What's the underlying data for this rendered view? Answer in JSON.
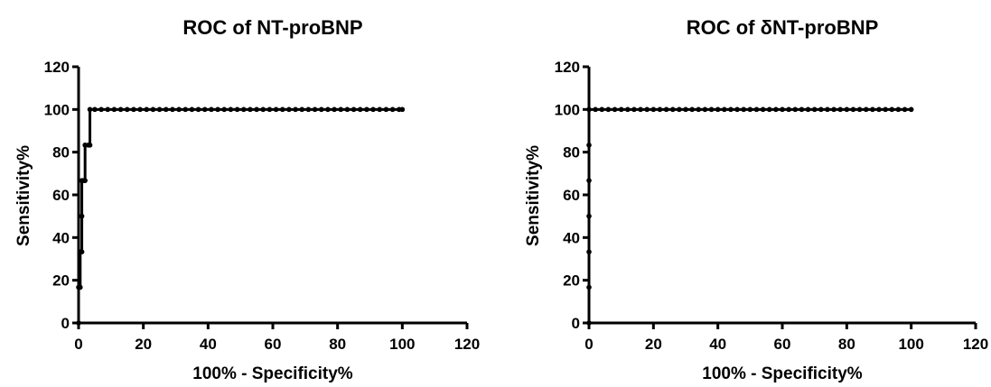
{
  "chart_data": [
    {
      "type": "line",
      "title": "ROC of NT-proBNP",
      "xlabel": "100% - Specificity%",
      "ylabel": "Sensitivity%",
      "xlim": [
        0,
        120
      ],
      "ylim": [
        0,
        120
      ],
      "xticks": [
        0,
        20,
        40,
        60,
        80,
        100,
        120
      ],
      "yticks": [
        0,
        20,
        40,
        60,
        80,
        100,
        120
      ],
      "grid": false,
      "line_color": "#000000",
      "series": [
        {
          "points": [
            [
              0,
              0
            ],
            [
              0,
              16.7
            ],
            [
              0.5,
              16.7
            ],
            [
              0.5,
              33.3
            ],
            [
              1.0,
              33.3
            ],
            [
              1.0,
              50.0
            ],
            [
              1.0,
              66.7
            ],
            [
              1.5,
              66.7
            ],
            [
              2.0,
              66.7
            ],
            [
              2.0,
              83.3
            ],
            [
              3.0,
              83.3
            ],
            [
              3.5,
              83.3
            ],
            [
              3.5,
              100
            ],
            [
              5,
              100
            ],
            [
              7,
              100
            ],
            [
              9,
              100
            ],
            [
              11,
              100
            ],
            [
              13,
              100
            ],
            [
              15,
              100
            ],
            [
              17,
              100
            ],
            [
              19,
              100
            ],
            [
              21,
              100
            ],
            [
              23,
              100
            ],
            [
              25,
              100
            ],
            [
              27,
              100
            ],
            [
              29,
              100
            ],
            [
              31,
              100
            ],
            [
              33,
              100
            ],
            [
              35,
              100
            ],
            [
              37,
              100
            ],
            [
              39,
              100
            ],
            [
              41,
              100
            ],
            [
              43,
              100
            ],
            [
              45,
              100
            ],
            [
              47,
              100
            ],
            [
              49,
              100
            ],
            [
              51,
              100
            ],
            [
              53,
              100
            ],
            [
              55,
              100
            ],
            [
              57,
              100
            ],
            [
              59,
              100
            ],
            [
              61,
              100
            ],
            [
              63,
              100
            ],
            [
              65,
              100
            ],
            [
              67,
              100
            ],
            [
              69,
              100
            ],
            [
              71,
              100
            ],
            [
              73,
              100
            ],
            [
              75,
              100
            ],
            [
              77,
              100
            ],
            [
              79,
              100
            ],
            [
              81,
              100
            ],
            [
              83,
              100
            ],
            [
              85,
              100
            ],
            [
              87,
              100
            ],
            [
              89,
              100
            ],
            [
              91,
              100
            ],
            [
              93,
              100
            ],
            [
              95,
              100
            ],
            [
              97,
              100
            ],
            [
              99,
              100
            ],
            [
              100,
              100
            ]
          ]
        }
      ]
    },
    {
      "type": "line",
      "title": "ROC of δNT-proBNP",
      "xlabel": "100% - Specificity%",
      "ylabel": "Sensitivity%",
      "xlim": [
        0,
        120
      ],
      "ylim": [
        0,
        120
      ],
      "xticks": [
        0,
        20,
        40,
        60,
        80,
        100,
        120
      ],
      "yticks": [
        0,
        20,
        40,
        60,
        80,
        100,
        120
      ],
      "grid": false,
      "line_color": "#000000",
      "series": [
        {
          "points": [
            [
              0,
              0
            ],
            [
              0,
              16.7
            ],
            [
              0,
              33.3
            ],
            [
              0,
              50.0
            ],
            [
              0,
              66.7
            ],
            [
              0,
              83.3
            ],
            [
              0,
              100
            ],
            [
              2,
              100
            ],
            [
              4,
              100
            ],
            [
              6,
              100
            ],
            [
              8,
              100
            ],
            [
              10,
              100
            ],
            [
              12,
              100
            ],
            [
              14,
              100
            ],
            [
              16,
              100
            ],
            [
              18,
              100
            ],
            [
              20,
              100
            ],
            [
              22,
              100
            ],
            [
              24,
              100
            ],
            [
              26,
              100
            ],
            [
              28,
              100
            ],
            [
              30,
              100
            ],
            [
              32,
              100
            ],
            [
              34,
              100
            ],
            [
              36,
              100
            ],
            [
              38,
              100
            ],
            [
              40,
              100
            ],
            [
              42,
              100
            ],
            [
              44,
              100
            ],
            [
              46,
              100
            ],
            [
              48,
              100
            ],
            [
              50,
              100
            ],
            [
              52,
              100
            ],
            [
              54,
              100
            ],
            [
              56,
              100
            ],
            [
              58,
              100
            ],
            [
              60,
              100
            ],
            [
              62,
              100
            ],
            [
              64,
              100
            ],
            [
              66,
              100
            ],
            [
              68,
              100
            ],
            [
              70,
              100
            ],
            [
              72,
              100
            ],
            [
              74,
              100
            ],
            [
              76,
              100
            ],
            [
              78,
              100
            ],
            [
              80,
              100
            ],
            [
              82,
              100
            ],
            [
              84,
              100
            ],
            [
              86,
              100
            ],
            [
              88,
              100
            ],
            [
              90,
              100
            ],
            [
              92,
              100
            ],
            [
              94,
              100
            ],
            [
              96,
              100
            ],
            [
              98,
              100
            ],
            [
              100,
              100
            ]
          ]
        }
      ]
    }
  ]
}
